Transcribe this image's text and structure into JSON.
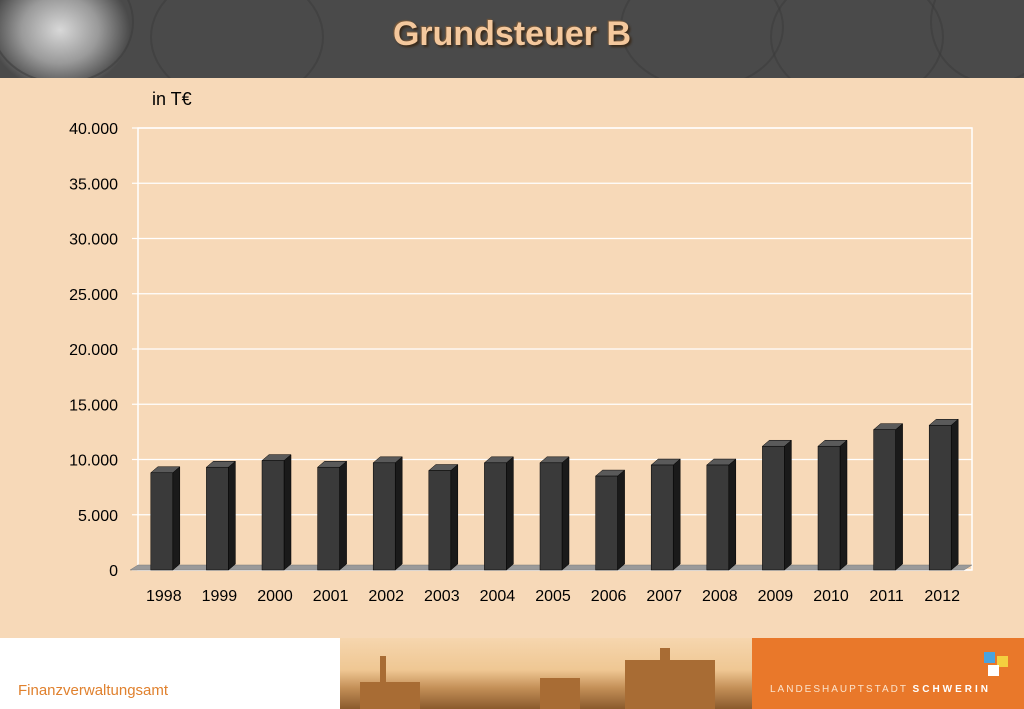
{
  "header": {
    "title": "Grundsteuer B"
  },
  "chart_data": {
    "type": "bar",
    "unit_label": "in T€",
    "categories": [
      "1998",
      "1999",
      "2000",
      "2001",
      "2002",
      "2003",
      "2004",
      "2005",
      "2006",
      "2007",
      "2008",
      "2009",
      "2010",
      "2011",
      "2012"
    ],
    "values": [
      8800,
      9300,
      9900,
      9300,
      9700,
      9000,
      9700,
      9700,
      8500,
      9500,
      9500,
      11200,
      11200,
      12700,
      13100
    ],
    "ylim": [
      0,
      40000
    ],
    "yticks": [
      "0",
      "5.000",
      "10.000",
      "15.000",
      "20.000",
      "25.000",
      "30.000",
      "35.000",
      "40.000"
    ],
    "grid": true,
    "colors": {
      "bar_front": "#3a3a3a",
      "bar_side": "#1a1a1a",
      "bar_top": "#5a5a5a",
      "grid": "#ffffff",
      "floor": "#9a9a9a"
    }
  },
  "footer": {
    "department": "Finanzverwaltungsamt",
    "brand_prefix": "LANDESHAUPTSTADT",
    "brand_name": "SCHWERIN",
    "brand_color": "#e9782a"
  }
}
